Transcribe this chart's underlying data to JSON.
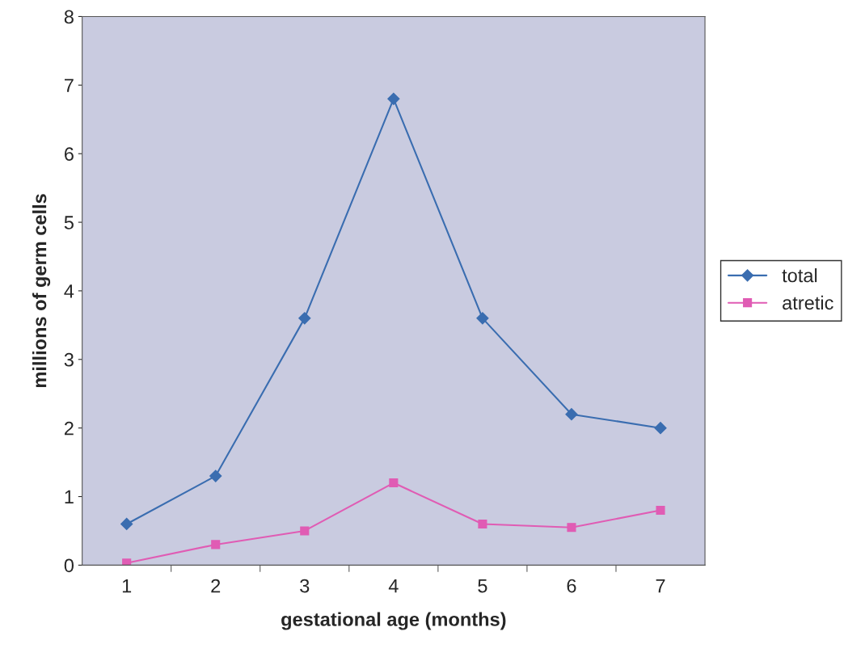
{
  "chart_data": {
    "type": "line",
    "xlabel": "gestational age (months)",
    "ylabel": "millions of germ cells",
    "categories": [
      "1",
      "2",
      "3",
      "4",
      "5",
      "6",
      "7"
    ],
    "series": [
      {
        "name": "total",
        "color": "#3a6db0",
        "marker": "diamond",
        "values": [
          0.6,
          1.3,
          3.6,
          6.8,
          3.6,
          2.2,
          2.0
        ]
      },
      {
        "name": "atretic",
        "color": "#e05cb4",
        "marker": "square",
        "values": [
          0.03,
          0.3,
          0.5,
          1.2,
          0.6,
          0.55,
          0.8
        ]
      }
    ],
    "ylim": [
      0,
      8
    ],
    "yticks": [
      0,
      1,
      2,
      3,
      4,
      5,
      6,
      7,
      8
    ],
    "grid": false,
    "legend": "right"
  }
}
